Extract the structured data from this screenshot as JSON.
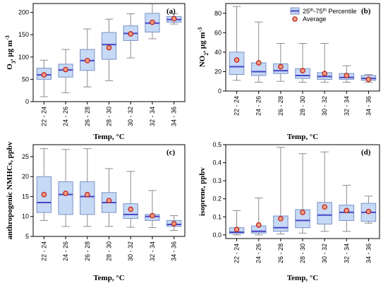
{
  "colors": {
    "box_fill": "#c6d9f5",
    "box_edge": "#7b93c7",
    "median": "#4a45c8",
    "whisker": "#8c8c8c",
    "mean_edge": "#c01818",
    "mean_fill": "#f0a080"
  },
  "legend": {
    "box_label_prefix": "25",
    "box_label_sup1": "th",
    "box_label_mid": "-75",
    "box_label_sup2": "th",
    "box_label_suffix": " Percentile",
    "mean_label": "Average",
    "placement": "top-right of panel (b)"
  },
  "chart_data": [
    {
      "type": "box",
      "tag": "(a)",
      "categories": [
        "22 - 24",
        "24 - 26",
        "26 - 28",
        "28 - 30",
        "30 - 32",
        "32 - 34",
        "34 - 36"
      ],
      "xlabel": "Temp, °C",
      "ylabel_main": "O",
      "ylabel_sub": "3",
      "ylabel_rest": ", µg m",
      "ylabel_sup": "-3",
      "ylim": [
        0,
        220
      ],
      "yticks": [
        0,
        50,
        100,
        150,
        200
      ],
      "ytick_labels": [
        "0",
        "50",
        "100",
        "150",
        "200"
      ],
      "series": [
        {
          "whisker_low": 11,
          "q1": 50,
          "median": 60,
          "q3": 75,
          "whisker_high": 93,
          "mean": 60
        },
        {
          "whisker_low": 20,
          "q1": 55,
          "median": 71,
          "q3": 84,
          "whisker_high": 117,
          "mean": 72
        },
        {
          "whisker_low": 33,
          "q1": 70,
          "median": 92,
          "q3": 117,
          "whisker_high": 163,
          "mean": 92
        },
        {
          "whisker_low": 47,
          "q1": 95,
          "median": 128,
          "q3": 155,
          "whisker_high": 185,
          "mean": 121
        },
        {
          "whisker_low": 98,
          "q1": 137,
          "median": 153,
          "q3": 170,
          "whisker_high": 197,
          "mean": 152
        },
        {
          "whisker_low": 141,
          "q1": 156,
          "median": 176,
          "q3": 198,
          "whisker_high": 219,
          "mean": 178
        },
        {
          "whisker_low": 174,
          "q1": 178,
          "median": 184,
          "q3": 191,
          "whisker_high": 197,
          "mean": 186
        }
      ]
    },
    {
      "type": "box",
      "tag": "(b)",
      "categories": [
        "22 - 24",
        "24 - 26",
        "26 - 28",
        "28 - 30",
        "30 - 32",
        "32 - 34",
        "34 - 36"
      ],
      "xlabel": "Temp, °C",
      "ylabel_main": "NO",
      "ylabel_sub": "2",
      "ylabel_rest": ", µg m",
      "ylabel_sup": "-3",
      "ylim": [
        0,
        90
      ],
      "yticks": [
        0,
        20,
        40,
        60,
        80
      ],
      "ytick_labels": [
        "0",
        "20",
        "40",
        "60",
        "80"
      ],
      "series": [
        {
          "whisker_low": 11,
          "q1": 17,
          "median": 25,
          "q3": 40,
          "whisker_high": 87,
          "mean": 32
        },
        {
          "whisker_low": 9,
          "q1": 16,
          "median": 20,
          "q3": 29,
          "whisker_high": 71,
          "mean": 29
        },
        {
          "whisker_low": 10,
          "q1": 18,
          "median": 21,
          "q3": 28,
          "whisker_high": 49,
          "mean": 25
        },
        {
          "whisker_low": 9,
          "q1": 13,
          "median": 16,
          "q3": 23,
          "whisker_high": 49,
          "mean": 21
        },
        {
          "whisker_low": 9,
          "q1": 12,
          "median": 15,
          "q3": 19,
          "whisker_high": 49,
          "mean": 18
        },
        {
          "whisker_low": 9,
          "q1": 12,
          "median": 14,
          "q3": 18,
          "whisker_high": 26,
          "mean": 16
        },
        {
          "whisker_low": 9,
          "q1": 11,
          "median": 13,
          "q3": 16,
          "whisker_high": 17,
          "mean": 12
        }
      ]
    },
    {
      "type": "box",
      "tag": "(c)",
      "categories": [
        "22 - 24",
        "24 - 26",
        "26 - 28",
        "28 - 30",
        "30 - 32",
        "32 - 34",
        "34 - 36"
      ],
      "xlabel": "Temp, °C",
      "ylabel_main": "anthropogenic NMHCs, ppbv",
      "ylabel_sub": "",
      "ylabel_rest": "",
      "ylabel_sup": "",
      "ylim": [
        5,
        28
      ],
      "yticks": [
        5,
        10,
        15,
        20,
        25
      ],
      "ytick_labels": [
        "5",
        "10",
        "15",
        "20",
        "25"
      ],
      "series": [
        {
          "whisker_low": 9,
          "q1": 11,
          "median": 13.5,
          "q3": 20,
          "whisker_high": 27,
          "mean": 15.5
        },
        {
          "whisker_low": 7.5,
          "q1": 10.5,
          "median": 15.5,
          "q3": 18.7,
          "whisker_high": 26.8,
          "mean": 15.8
        },
        {
          "whisker_low": 7.5,
          "q1": 10.5,
          "median": 15,
          "q3": 18.7,
          "whisker_high": 27,
          "mean": 15.5
        },
        {
          "whisker_low": 7.5,
          "q1": 11,
          "median": 13.5,
          "q3": 16,
          "whisker_high": 22,
          "mean": 14
        },
        {
          "whisker_low": 7.3,
          "q1": 9.5,
          "median": 10.5,
          "q3": 13.2,
          "whisker_high": 21.3,
          "mean": 11.8
        },
        {
          "whisker_low": 7.2,
          "q1": 9,
          "median": 10,
          "q3": 10.5,
          "whisker_high": 16.5,
          "mean": 10.2
        },
        {
          "whisker_low": 6.5,
          "q1": 7.5,
          "median": 8,
          "q3": 9,
          "whisker_high": 10.2,
          "mean": 8.2
        }
      ]
    },
    {
      "type": "box",
      "tag": "(d)",
      "categories": [
        "22 - 24",
        "24 - 26",
        "26 - 28",
        "28 - 30",
        "30 - 32",
        "32 - 34",
        "34 - 36"
      ],
      "xlabel": "Temp, °C",
      "ylabel_main": "isoprene, ppbv",
      "ylabel_sub": "",
      "ylabel_rest": "",
      "ylabel_sup": "",
      "ylim": [
        -0.02,
        0.5
      ],
      "yticks": [
        0.0,
        0.1,
        0.2,
        0.3,
        0.4,
        0.5
      ],
      "ytick_labels": [
        "0.0",
        "0.1",
        "0.2",
        "0.3",
        "0.4",
        "0.5"
      ],
      "series": [
        {
          "whisker_low": 0.0,
          "q1": 0.008,
          "median": 0.015,
          "q3": 0.04,
          "whisker_high": 0.135,
          "mean": 0.03
        },
        {
          "whisker_low": 0.0,
          "q1": 0.01,
          "median": 0.02,
          "q3": 0.05,
          "whisker_high": 0.205,
          "mean": 0.055
        },
        {
          "whisker_low": 0.005,
          "q1": 0.02,
          "median": 0.04,
          "q3": 0.105,
          "whisker_high": 0.485,
          "mean": 0.09
        },
        {
          "whisker_low": 0.01,
          "q1": 0.04,
          "median": 0.08,
          "q3": 0.14,
          "whisker_high": 0.45,
          "mean": 0.125
        },
        {
          "whisker_low": 0.02,
          "q1": 0.06,
          "median": 0.11,
          "q3": 0.18,
          "whisker_high": 0.46,
          "mean": 0.155
        },
        {
          "whisker_low": 0.02,
          "q1": 0.08,
          "median": 0.125,
          "q3": 0.165,
          "whisker_high": 0.275,
          "mean": 0.135
        },
        {
          "whisker_low": 0.065,
          "q1": 0.075,
          "median": 0.125,
          "q3": 0.175,
          "whisker_high": 0.215,
          "mean": 0.13
        }
      ]
    }
  ]
}
